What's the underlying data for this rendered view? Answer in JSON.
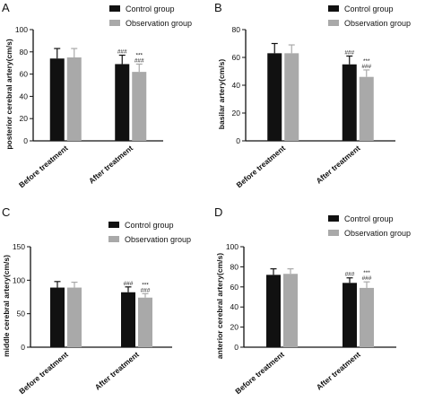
{
  "legend": {
    "control": "Control group",
    "observation": "Observation group"
  },
  "colors": {
    "control": "#111111",
    "observation": "#a9a9a9",
    "axis": "#111111"
  },
  "chart_data": [
    {
      "type": "bar",
      "panel_label": "A",
      "ylabel": "posterior cerebral artery(cm/s)",
      "categories": [
        "Before treatment",
        "After treatment"
      ],
      "ylim": [
        0,
        100
      ],
      "yticks": [
        0,
        20,
        40,
        60,
        80,
        100
      ],
      "series": [
        {
          "name": "Control group",
          "values": [
            74,
            69
          ],
          "errors": [
            9,
            8
          ],
          "labels": [
            "",
            "###"
          ]
        },
        {
          "name": "Observation group",
          "values": [
            75,
            62
          ],
          "errors": [
            8,
            7
          ],
          "labels": [
            "",
            "###\n***"
          ]
        }
      ]
    },
    {
      "type": "bar",
      "panel_label": "B",
      "ylabel": "basilar artery(cm/s)",
      "categories": [
        "Before treatment",
        "After treatment"
      ],
      "ylim": [
        0,
        80
      ],
      "yticks": [
        0,
        20,
        40,
        60,
        80
      ],
      "series": [
        {
          "name": "Control group",
          "values": [
            63,
            55
          ],
          "errors": [
            7,
            6
          ],
          "labels": [
            "",
            "###"
          ]
        },
        {
          "name": "Observation group",
          "values": [
            63,
            46
          ],
          "errors": [
            6,
            5
          ],
          "labels": [
            "",
            "###\n***"
          ]
        }
      ]
    },
    {
      "type": "bar",
      "panel_label": "C",
      "ylabel": "middle cerebral artery(cm/s)",
      "categories": [
        "Before treatment",
        "After treatment"
      ],
      "ylim": [
        0,
        150
      ],
      "yticks": [
        0,
        50,
        100,
        150
      ],
      "series": [
        {
          "name": "Control group",
          "values": [
            89,
            82
          ],
          "errors": [
            9,
            8
          ],
          "labels": [
            "",
            "###"
          ]
        },
        {
          "name": "Observation group",
          "values": [
            89,
            74
          ],
          "errors": [
            8,
            6
          ],
          "labels": [
            "",
            "###\n***"
          ]
        }
      ]
    },
    {
      "type": "bar",
      "panel_label": "D",
      "ylabel": "anterior cerebral artery(cm/s)",
      "categories": [
        "Before treatment",
        "After treatment"
      ],
      "ylim": [
        0,
        100
      ],
      "yticks": [
        0,
        20,
        40,
        60,
        80,
        100
      ],
      "series": [
        {
          "name": "Control group",
          "values": [
            72,
            64
          ],
          "errors": [
            6,
            5
          ],
          "labels": [
            "",
            "###"
          ]
        },
        {
          "name": "Observation group",
          "values": [
            73,
            59
          ],
          "errors": [
            5,
            6
          ],
          "labels": [
            "",
            "###\n***"
          ]
        }
      ]
    }
  ]
}
